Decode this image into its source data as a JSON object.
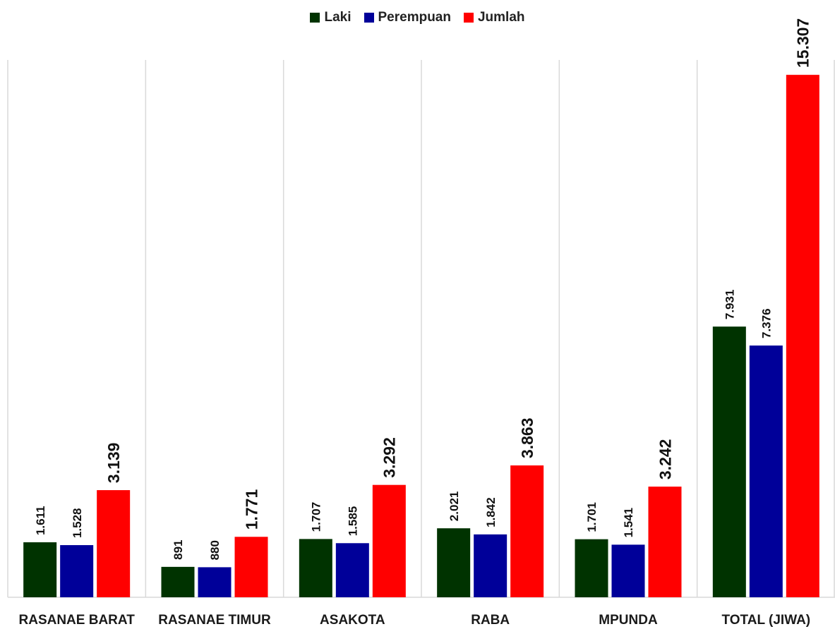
{
  "chart_data": {
    "type": "bar",
    "categories": [
      "RASANAE BARAT",
      "RASANAE TIMUR",
      "ASAKOTA",
      "RABA",
      "MPUNDA",
      "TOTAL (JIWA)"
    ],
    "series": [
      {
        "name": "Laki",
        "color": "#003300",
        "values": [
          1611,
          891,
          1707,
          2021,
          1701,
          7931
        ],
        "labels": [
          "1.611",
          "891",
          "1.707",
          "2.021",
          "1.701",
          "7.931"
        ]
      },
      {
        "name": "Perempuan",
        "color": "#000099",
        "values": [
          1528,
          880,
          1585,
          1842,
          1541,
          7376
        ],
        "labels": [
          "1.528",
          "880",
          "1.585",
          "1.842",
          "1.541",
          "7.376"
        ]
      },
      {
        "name": "Jumlah",
        "color": "#ff0000",
        "values": [
          3139,
          1771,
          3292,
          3863,
          3242,
          15307
        ],
        "labels": [
          "3.139",
          "1.771",
          "3.292",
          "3.863",
          "3.242",
          "15.307"
        ]
      }
    ],
    "ylim": [
      0,
      17500
    ],
    "legend_position": "top",
    "grid": "vertical-separators"
  }
}
